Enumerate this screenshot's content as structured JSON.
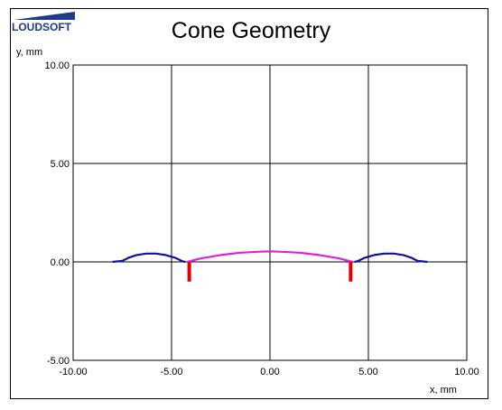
{
  "brand": {
    "logo_text": "LOUDSOFT",
    "accent": "#1f3a8a"
  },
  "chart_data": {
    "type": "line",
    "title": "Cone Geometry",
    "xlabel": "x, mm",
    "ylabel": "y, mm",
    "xlim": [
      -10,
      10
    ],
    "ylim": [
      -5,
      10
    ],
    "x_ticks": [
      -10,
      -5,
      0,
      5,
      10
    ],
    "y_ticks": [
      -5,
      0,
      5,
      10
    ],
    "tick_format_decimals": 2,
    "grid": true,
    "series": [
      {
        "color": "#1010a0",
        "points": [
          [
            -8.0,
            0.0
          ],
          [
            -7.5,
            0.05
          ],
          [
            -7.2,
            0.2
          ],
          [
            -6.8,
            0.34
          ],
          [
            -6.3,
            0.42
          ],
          [
            -5.8,
            0.42
          ],
          [
            -5.3,
            0.35
          ],
          [
            -4.8,
            0.2
          ],
          [
            -4.45,
            0.03
          ],
          [
            -4.3,
            0.0
          ]
        ]
      },
      {
        "color": "#1010a0",
        "points": [
          [
            8.0,
            0.0
          ],
          [
            7.5,
            0.05
          ],
          [
            7.2,
            0.2
          ],
          [
            6.8,
            0.34
          ],
          [
            6.3,
            0.42
          ],
          [
            5.8,
            0.42
          ],
          [
            5.3,
            0.35
          ],
          [
            4.8,
            0.2
          ],
          [
            4.45,
            0.03
          ],
          [
            4.3,
            0.0
          ]
        ]
      },
      {
        "color": "#e020e0",
        "points": [
          [
            -4.2,
            0.0
          ],
          [
            -3.5,
            0.18
          ],
          [
            -2.5,
            0.35
          ],
          [
            -1.5,
            0.47
          ],
          [
            -0.5,
            0.52
          ],
          [
            0.0,
            0.53
          ],
          [
            0.5,
            0.52
          ],
          [
            1.5,
            0.47
          ],
          [
            2.5,
            0.35
          ],
          [
            3.5,
            0.18
          ],
          [
            4.2,
            0.0
          ]
        ]
      }
    ],
    "markers": [
      {
        "color": "#e00000",
        "x": -4.1,
        "y0": 0.0,
        "y1": -1.0
      },
      {
        "color": "#e00000",
        "x": 4.1,
        "y0": 0.0,
        "y1": -1.0
      }
    ]
  }
}
